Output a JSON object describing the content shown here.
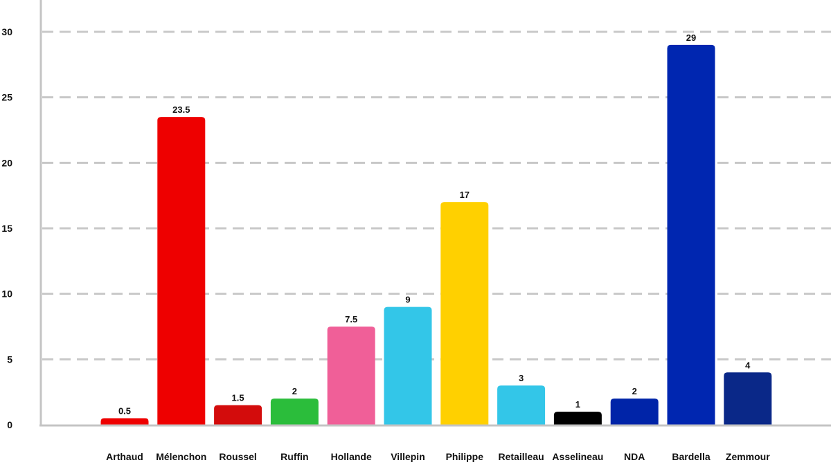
{
  "chart_data": {
    "type": "bar",
    "categories": [
      "Arthaud",
      "Mélenchon",
      "Roussel",
      "Ruffin",
      "Hollande",
      "Villepin",
      "Philippe",
      "Retailleau",
      "Asselineau",
      "NDA",
      "Bardella",
      "Zemmour"
    ],
    "values": [
      0.5,
      23.5,
      1.5,
      2,
      7.5,
      9,
      17,
      3,
      1,
      2,
      29,
      4
    ],
    "value_labels": [
      "0.5",
      "23.5",
      "1.5",
      "2",
      "7.5",
      "9",
      "17",
      "3",
      "1",
      "2",
      "29",
      "4"
    ],
    "colors": [
      "#ee0000",
      "#ee0000",
      "#d30c0c",
      "#2bbd3b",
      "#f05f98",
      "#33c6e8",
      "#ffd000",
      "#33c6e8",
      "#000000",
      "#0024a8",
      "#0026b0",
      "#0a2888"
    ],
    "title": "",
    "xlabel": "",
    "ylabel": "",
    "ylim": [
      0,
      30
    ],
    "yticks": [
      0,
      5,
      10,
      15,
      20,
      25,
      30
    ],
    "ytick_labels": [
      "0",
      "5",
      "10",
      "15",
      "20",
      "25",
      "30"
    ],
    "grid": true,
    "grid_style": "dashed",
    "legend": "none"
  }
}
